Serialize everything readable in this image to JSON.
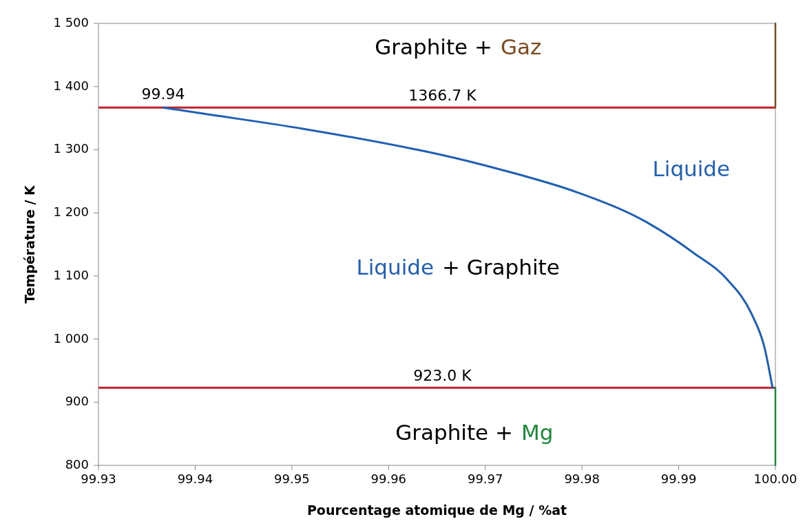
{
  "chart_data": {
    "type": "line",
    "xlabel": "Pourcentage atomique de Mg / %at",
    "ylabel": "Température / K",
    "xlim": [
      99.93,
      100.0
    ],
    "xticks": [
      99.93,
      99.94,
      99.95,
      99.96,
      99.97,
      99.98,
      99.99,
      {
        "value": 100.0,
        "label": "100.00"
      }
    ],
    "ylim": [
      800,
      1500
    ],
    "yticks": [
      {
        "value": 800,
        "label": "800"
      },
      {
        "value": 900,
        "label": "900"
      },
      {
        "value": 1000,
        "label": "1 000"
      },
      {
        "value": 1100,
        "label": "1 100"
      },
      {
        "value": 1200,
        "label": "1 200"
      },
      {
        "value": 1300,
        "label": "1 300"
      },
      {
        "value": 1400,
        "label": "1 400"
      },
      {
        "value": 1500,
        "label": "1 500"
      }
    ],
    "grid": false,
    "marker": "none",
    "line_style": "solid",
    "series": [
      {
        "name": "Liquide",
        "color": "#1f5fb4",
        "x": [
          99.9367,
          99.94,
          99.9512,
          99.9626,
          99.9654,
          99.9717,
          99.9794,
          99.9867,
          99.9915,
          99.9951,
          99.9975,
          99.9989,
          99.9997
        ],
        "values": [
          1366.7,
          1359,
          1333,
          1301,
          1292,
          1268,
          1233,
          1185,
          1137,
          1093,
          1041,
          985,
          923
        ]
      },
      {
        "name": "Gaz",
        "color": "#7b4a1e",
        "x": [
          100.0,
          100.0
        ],
        "values": [
          1366.7,
          1500
        ]
      },
      {
        "name": "Mg",
        "color": "#1a8a3a",
        "x": [
          100.0,
          100.0
        ],
        "values": [
          800,
          923
        ]
      }
    ],
    "ref_lines": [
      {
        "axis": "y",
        "value": 1366.7,
        "label": "1366.7 K",
        "color": "#c0202a"
      },
      {
        "axis": "y",
        "value": 923.0,
        "label": "923.0 K",
        "color": "#c0202a"
      }
    ],
    "annotations": [
      "Graphite +",
      "+ Graphite",
      "Graphite +",
      {
        "text": "99.94",
        "x": 99.9367,
        "y": 1366.7
      }
    ]
  }
}
